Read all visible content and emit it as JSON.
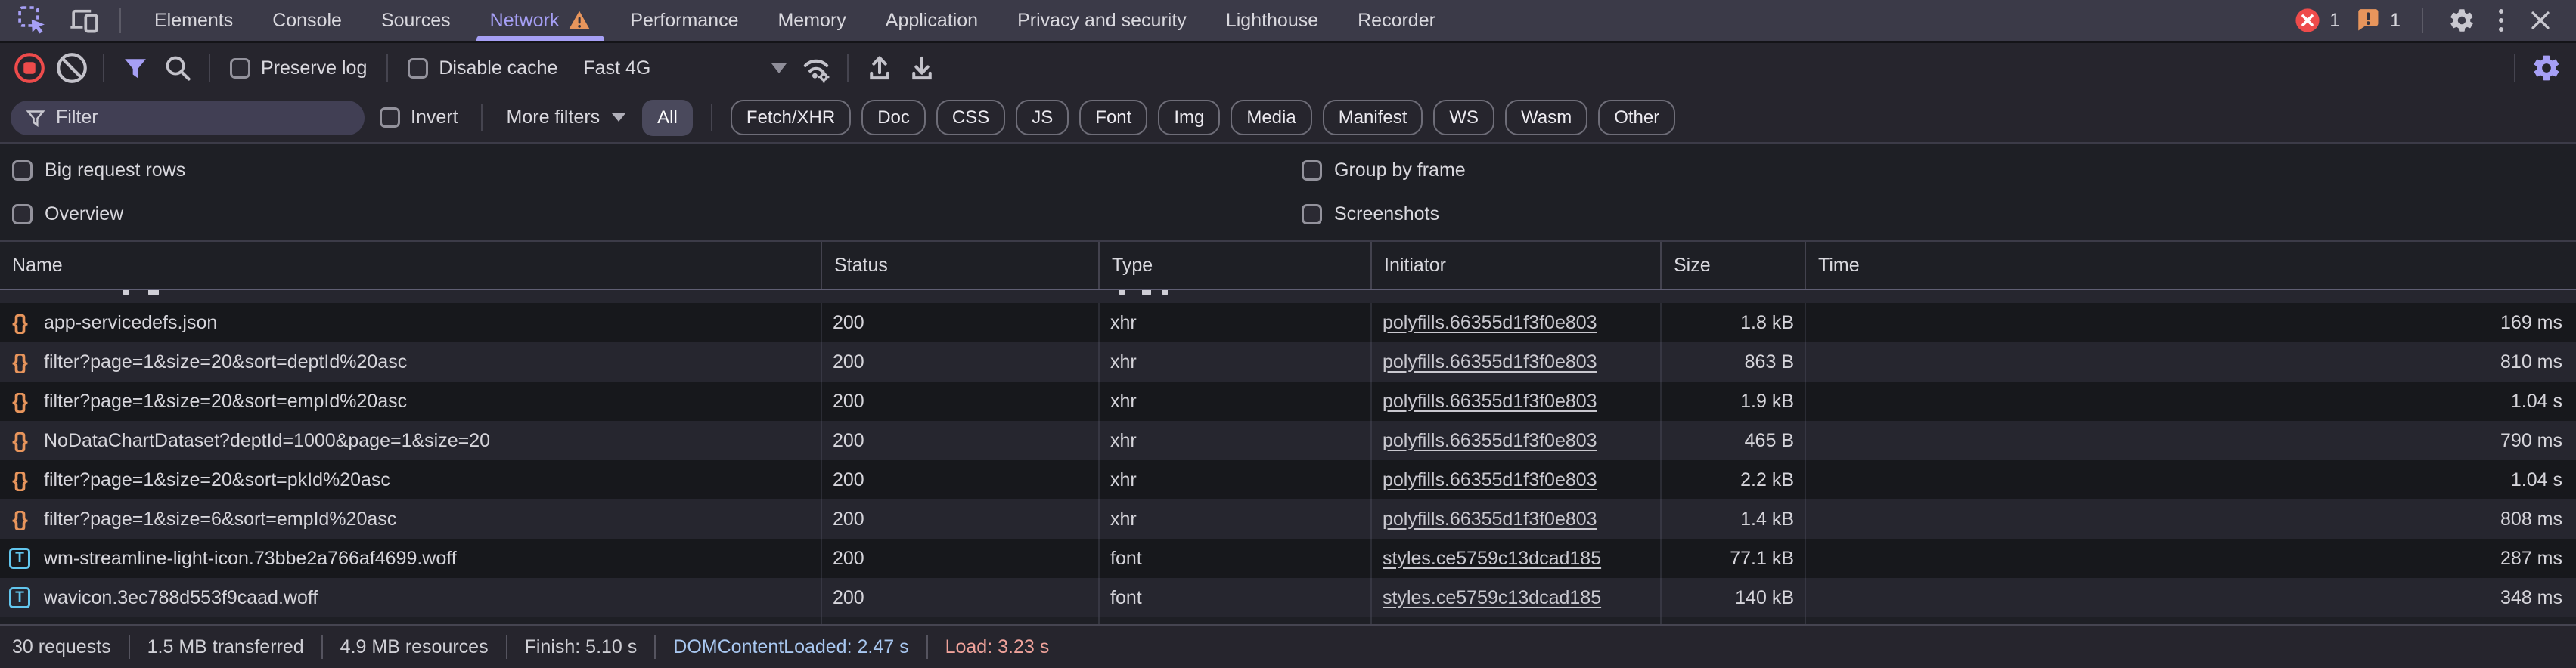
{
  "colors": {
    "accent": "#a69ff5",
    "warning-orange": "#e8955c",
    "error-red": "#ee4b4b",
    "record-red": "#ed4b4b",
    "font-blue": "#62c6ee",
    "xhr-orange": "#e8955c",
    "dcl-blue": "#a8c7f0",
    "load-red": "#f0a39b"
  },
  "tabbar": {
    "tabs": [
      {
        "label": "Elements"
      },
      {
        "label": "Console"
      },
      {
        "label": "Sources"
      },
      {
        "label": "Network",
        "active": true,
        "warning": true
      },
      {
        "label": "Performance"
      },
      {
        "label": "Memory"
      },
      {
        "label": "Application"
      },
      {
        "label": "Privacy and security"
      },
      {
        "label": "Lighthouse"
      },
      {
        "label": "Recorder"
      }
    ],
    "error_count": "1",
    "issue_count": "1"
  },
  "toolbar": {
    "preserve_log_label": "Preserve log",
    "disable_cache_label": "Disable cache",
    "throttling_value": "Fast 4G"
  },
  "filterbar": {
    "placeholder": "Filter",
    "invert_label": "Invert",
    "more_filters_label": "More filters",
    "selected_type": "All",
    "types": [
      "All",
      "Fetch/XHR",
      "Doc",
      "CSS",
      "JS",
      "Font",
      "Img",
      "Media",
      "Manifest",
      "WS",
      "Wasm",
      "Other"
    ]
  },
  "options": {
    "big_request_rows": "Big request rows",
    "group_by_frame": "Group by frame",
    "overview": "Overview",
    "screenshots": "Screenshots"
  },
  "table": {
    "columns": [
      "Name",
      "Status",
      "Type",
      "Initiator",
      "Size",
      "Time"
    ],
    "rows": [
      {
        "icon": "json",
        "name": "app-servicedefs.json",
        "status": "200",
        "type": "xhr",
        "initiator": "polyfills.66355d1f3f0e803",
        "size": "1.8 kB",
        "time": "169 ms"
      },
      {
        "icon": "json",
        "name": "filter?page=1&size=20&sort=deptId%20asc",
        "status": "200",
        "type": "xhr",
        "initiator": "polyfills.66355d1f3f0e803",
        "size": "863 B",
        "time": "810 ms"
      },
      {
        "icon": "json",
        "name": "filter?page=1&size=20&sort=empId%20asc",
        "status": "200",
        "type": "xhr",
        "initiator": "polyfills.66355d1f3f0e803",
        "size": "1.9 kB",
        "time": "1.04 s"
      },
      {
        "icon": "json",
        "name": "NoDataChartDataset?deptId=1000&page=1&size=20",
        "status": "200",
        "type": "xhr",
        "initiator": "polyfills.66355d1f3f0e803",
        "size": "465 B",
        "time": "790 ms"
      },
      {
        "icon": "json",
        "name": "filter?page=1&size=20&sort=pkId%20asc",
        "status": "200",
        "type": "xhr",
        "initiator": "polyfills.66355d1f3f0e803",
        "size": "2.2 kB",
        "time": "1.04 s"
      },
      {
        "icon": "json",
        "name": "filter?page=1&size=6&sort=empId%20asc",
        "status": "200",
        "type": "xhr",
        "initiator": "polyfills.66355d1f3f0e803",
        "size": "1.4 kB",
        "time": "808 ms"
      },
      {
        "icon": "font",
        "name": "wm-streamline-light-icon.73bbe2a766af4699.woff",
        "status": "200",
        "type": "font",
        "initiator": "styles.ce5759c13dcad185",
        "size": "77.1 kB",
        "time": "287 ms"
      },
      {
        "icon": "font",
        "name": "wavicon.3ec788d553f9caad.woff",
        "status": "200",
        "type": "font",
        "initiator": "styles.ce5759c13dcad185",
        "size": "140 kB",
        "time": "348 ms"
      }
    ]
  },
  "statusbar": {
    "items": [
      {
        "text": "30 requests"
      },
      {
        "text": "1.5 MB transferred"
      },
      {
        "text": "4.9 MB resources"
      },
      {
        "text": "Finish: 5.10 s"
      },
      {
        "text": "DOMContentLoaded: 2.47 s",
        "color": "blue"
      },
      {
        "text": "Load: 3.23 s",
        "color": "red"
      }
    ]
  }
}
